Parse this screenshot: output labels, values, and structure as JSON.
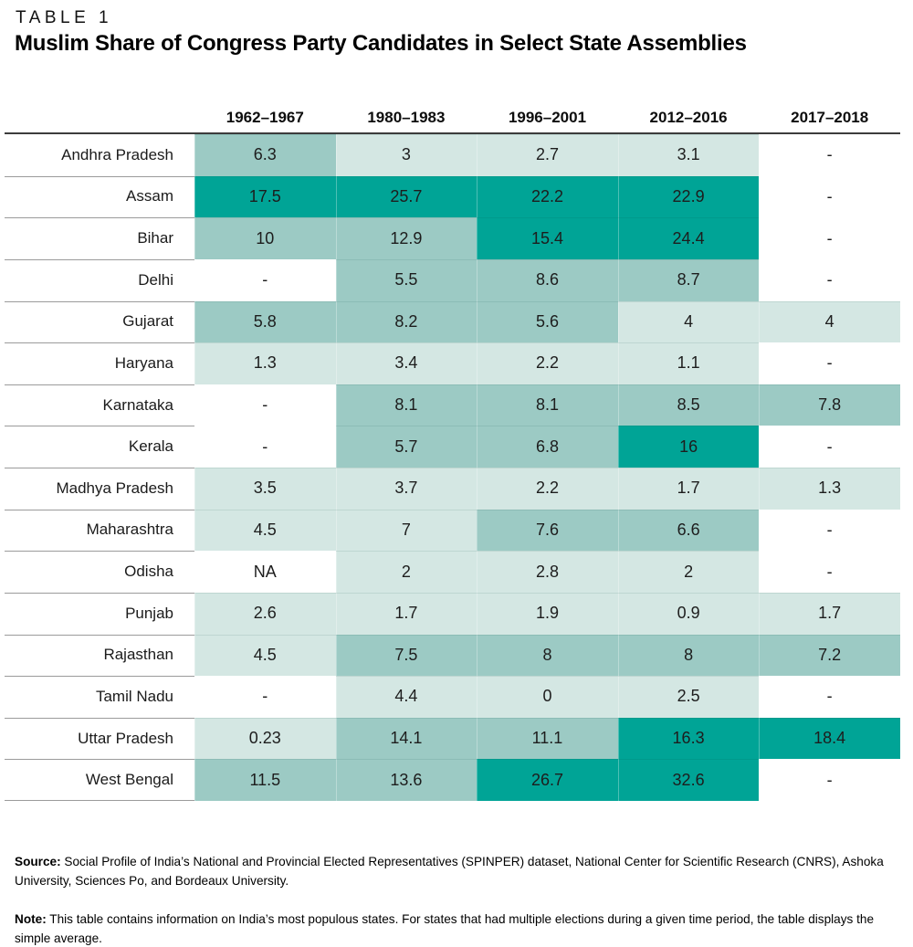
{
  "kicker": "TABLE 1",
  "title": "Muslim Share of Congress Party Candidates in Select State Assemblies",
  "notes": {
    "source_label": "Source:",
    "source_text": " Social Profile of India’s National and Provincial Elected Representatives (SPINPER) dataset, National Center for Scientific Research (CNRS), Ashoka University, Sciences Po, and Bordeaux University.",
    "note_label": "Note:",
    "note_text": " This table contains information on India’s most populous states. For states that had multiple elections during a given time period, the table displays the simple average."
  },
  "chart_data": {
    "type": "heatmap",
    "title": "Muslim Share of Congress Party Candidates in Select State Assemblies",
    "columns": [
      "1962–1967",
      "1980–1983",
      "1996–2001",
      "2012–2016",
      "2017–2018"
    ],
    "rows": [
      {
        "state": "Andhra Pradesh",
        "values": [
          "6.3",
          "3",
          "2.7",
          "3.1",
          "-"
        ],
        "tiers": [
          "mid",
          "low",
          "low",
          "low",
          "none"
        ]
      },
      {
        "state": "Assam",
        "values": [
          "17.5",
          "25.7",
          "22.2",
          "22.9",
          "-"
        ],
        "tiers": [
          "high",
          "high",
          "high",
          "high",
          "none"
        ]
      },
      {
        "state": "Bihar",
        "values": [
          "10",
          "12.9",
          "15.4",
          "24.4",
          "-"
        ],
        "tiers": [
          "mid",
          "mid",
          "high",
          "high",
          "none"
        ]
      },
      {
        "state": "Delhi",
        "values": [
          "-",
          "5.5",
          "8.6",
          "8.7",
          "-"
        ],
        "tiers": [
          "none",
          "mid",
          "mid",
          "mid",
          "none"
        ]
      },
      {
        "state": "Gujarat",
        "values": [
          "5.8",
          "8.2",
          "5.6",
          "4",
          "4"
        ],
        "tiers": [
          "mid",
          "mid",
          "mid",
          "low",
          "low"
        ]
      },
      {
        "state": "Haryana",
        "values": [
          "1.3",
          "3.4",
          "2.2",
          "1.1",
          "-"
        ],
        "tiers": [
          "low",
          "low",
          "low",
          "low",
          "none"
        ]
      },
      {
        "state": "Karnataka",
        "values": [
          "-",
          "8.1",
          "8.1",
          "8.5",
          "7.8"
        ],
        "tiers": [
          "none",
          "mid",
          "mid",
          "mid",
          "mid"
        ]
      },
      {
        "state": "Kerala",
        "values": [
          "-",
          "5.7",
          "6.8",
          "16",
          "-"
        ],
        "tiers": [
          "none",
          "mid",
          "mid",
          "high",
          "none"
        ]
      },
      {
        "state": "Madhya Pradesh",
        "values": [
          "3.5",
          "3.7",
          "2.2",
          "1.7",
          "1.3"
        ],
        "tiers": [
          "low",
          "low",
          "low",
          "low",
          "low"
        ]
      },
      {
        "state": "Maharashtra",
        "values": [
          "4.5",
          "7",
          "7.6",
          "6.6",
          "-"
        ],
        "tiers": [
          "low",
          "low",
          "mid",
          "mid",
          "none"
        ]
      },
      {
        "state": "Odisha",
        "values": [
          "NA",
          "2",
          "2.8",
          "2",
          "-"
        ],
        "tiers": [
          "none",
          "low",
          "low",
          "low",
          "none"
        ]
      },
      {
        "state": "Punjab",
        "values": [
          "2.6",
          "1.7",
          "1.9",
          "0.9",
          "1.7"
        ],
        "tiers": [
          "low",
          "low",
          "low",
          "low",
          "low"
        ]
      },
      {
        "state": "Rajasthan",
        "values": [
          "4.5",
          "7.5",
          "8",
          "8",
          "7.2"
        ],
        "tiers": [
          "low",
          "mid",
          "mid",
          "mid",
          "mid"
        ]
      },
      {
        "state": "Tamil Nadu",
        "values": [
          "-",
          "4.4",
          "0",
          "2.5",
          "-"
        ],
        "tiers": [
          "none",
          "low",
          "low",
          "low",
          "none"
        ]
      },
      {
        "state": "Uttar Pradesh",
        "values": [
          "0.23",
          "14.1",
          "11.1",
          "16.3",
          "18.4"
        ],
        "tiers": [
          "low",
          "mid",
          "mid",
          "high",
          "high"
        ]
      },
      {
        "state": "West Bengal",
        "values": [
          "11.5",
          "13.6",
          "26.7",
          "32.6",
          "-"
        ],
        "tiers": [
          "mid",
          "mid",
          "high",
          "high",
          "none"
        ]
      }
    ],
    "color_scale": {
      "none": "#FFFFFF",
      "low": "#D4E7E3",
      "mid": "#9CCAC4",
      "high": "#00A496"
    },
    "layout": {
      "grid": "row separator lines",
      "row_label_align": "right",
      "value_align": "center",
      "legend": "none"
    }
  }
}
